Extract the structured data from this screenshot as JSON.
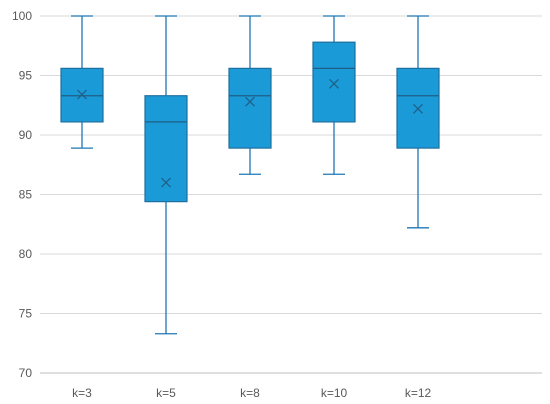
{
  "chart_data": {
    "type": "boxplot",
    "title": "",
    "xlabel": "",
    "ylabel": "",
    "ylim": [
      70,
      100
    ],
    "yticks": [
      70,
      75,
      80,
      85,
      90,
      95,
      100
    ],
    "grid": true,
    "legend": "none",
    "colors": {
      "box": "#1b9ad8",
      "outline": "#1f6f9e",
      "whisker": "#1f77b4",
      "grid": "#d9d9d9"
    },
    "categories": [
      "k=3",
      "k=5",
      "k=8",
      "k=10",
      "k=12"
    ],
    "boxes": [
      {
        "min": 88.9,
        "q1": 91.1,
        "median": 93.3,
        "q3": 95.6,
        "max": 100,
        "mean": 93.4
      },
      {
        "min": 73.3,
        "q1": 84.4,
        "median": 91.1,
        "q3": 93.3,
        "max": 100,
        "mean": 86.0
      },
      {
        "min": 86.7,
        "q1": 88.9,
        "median": 93.3,
        "q3": 95.6,
        "max": 100,
        "mean": 92.8
      },
      {
        "min": 86.7,
        "q1": 91.1,
        "median": 95.6,
        "q3": 97.8,
        "max": 100,
        "mean": 94.3
      },
      {
        "min": 82.2,
        "q1": 88.9,
        "median": 93.3,
        "q3": 95.6,
        "max": 100,
        "mean": 92.2
      }
    ]
  }
}
